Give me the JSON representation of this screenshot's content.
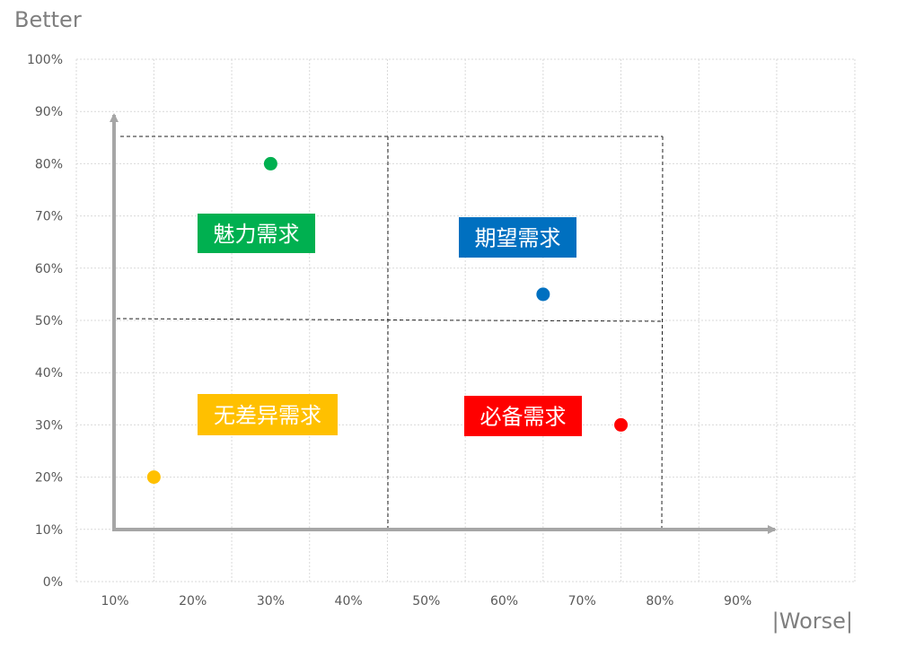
{
  "chart_data": {
    "type": "scatter",
    "title": "",
    "ylabel": "Better",
    "xlabel": "|Worse|",
    "x_ticks": [
      "10%",
      "20%",
      "30%",
      "40%",
      "50%",
      "60%",
      "70%",
      "80%",
      "90%"
    ],
    "y_ticks": [
      "0%",
      "10%",
      "20%",
      "30%",
      "40%",
      "50%",
      "60%",
      "70%",
      "80%",
      "90%",
      "100%"
    ],
    "xlim": [
      0.05,
      1.0
    ],
    "ylim": [
      0,
      1.0
    ],
    "grid": true,
    "points": [
      {
        "x": 0.3,
        "y": 0.8,
        "color": "#00b050"
      },
      {
        "x": 0.65,
        "y": 0.55,
        "color": "#0070c0"
      },
      {
        "x": 0.15,
        "y": 0.2,
        "color": "#ffc000"
      },
      {
        "x": 0.75,
        "y": 0.3,
        "color": "#ff0000"
      }
    ],
    "quadrant_labels": [
      {
        "text": "魅力需求",
        "color": "#00b050"
      },
      {
        "text": "期望需求",
        "color": "#0070c0"
      },
      {
        "text": "无差异需求",
        "color": "#ffc000"
      },
      {
        "text": "必备需求",
        "color": "#ff0000"
      }
    ]
  }
}
